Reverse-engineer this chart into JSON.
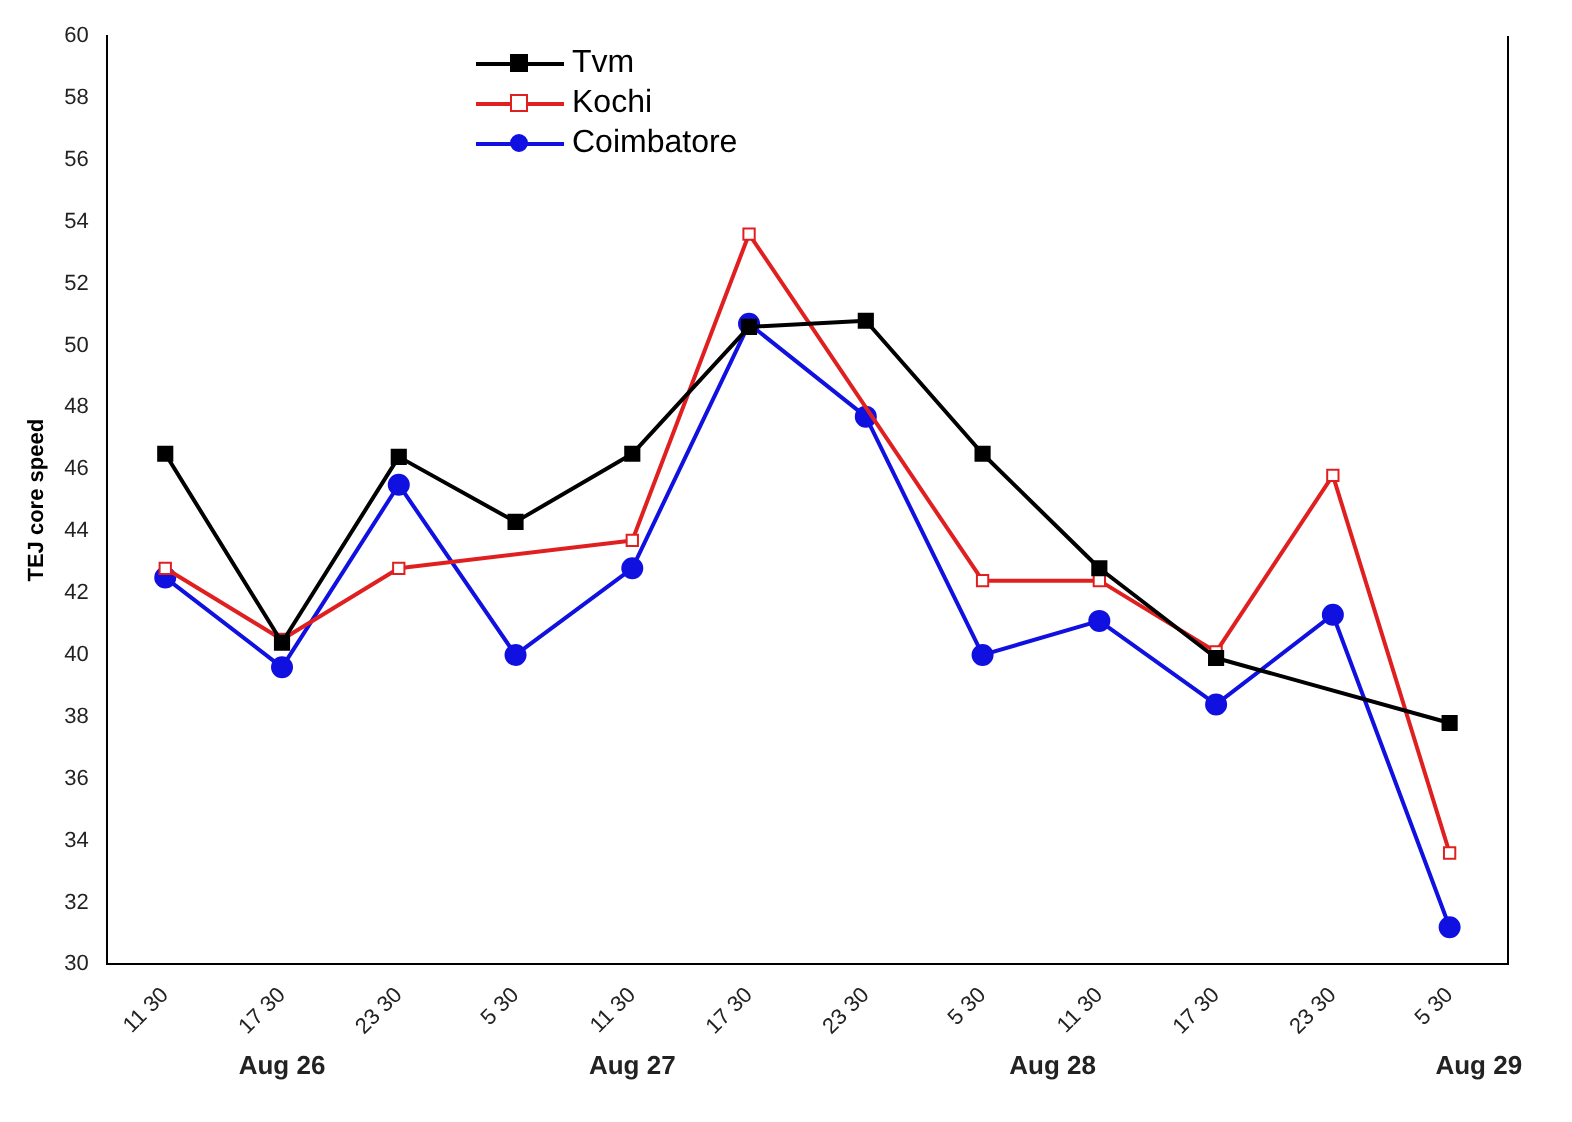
{
  "chart_data": {
    "type": "line",
    "ylabel": "TEJ core speed",
    "categories": [
      "11 30",
      "17 30",
      "23 30",
      "5 30",
      "11 30",
      "17 30",
      "23 30",
      "5 30",
      "11 30",
      "17 30",
      "23 30",
      "5 30"
    ],
    "series": [
      {
        "name": "Tvm",
        "color": "#000000",
        "marker": "square",
        "values": [
          46.5,
          40.4,
          46.4,
          44.3,
          46.5,
          50.6,
          50.8,
          46.5,
          42.8,
          39.9,
          null,
          37.8
        ]
      },
      {
        "name": "Kochi",
        "color": "#e02020",
        "marker": "square",
        "values": [
          42.8,
          40.5,
          42.8,
          null,
          43.7,
          53.6,
          null,
          42.4,
          42.4,
          40.1,
          45.8,
          33.6
        ]
      },
      {
        "name": "Coimbatore",
        "color": "#1010e0",
        "marker": "circle",
        "values": [
          42.5,
          39.6,
          45.5,
          40.0,
          42.8,
          50.7,
          47.7,
          40.0,
          41.1,
          38.4,
          41.3,
          31.2
        ]
      }
    ],
    "ylim": [
      30,
      60
    ],
    "yticks": [
      30,
      32,
      34,
      36,
      38,
      40,
      42,
      44,
      46,
      48,
      50,
      52,
      54,
      56,
      58,
      60
    ],
    "grid": false,
    "legend": "top",
    "annotations": [
      "Aug 26",
      "Aug 27",
      "Aug 28",
      "Aug 29"
    ]
  }
}
